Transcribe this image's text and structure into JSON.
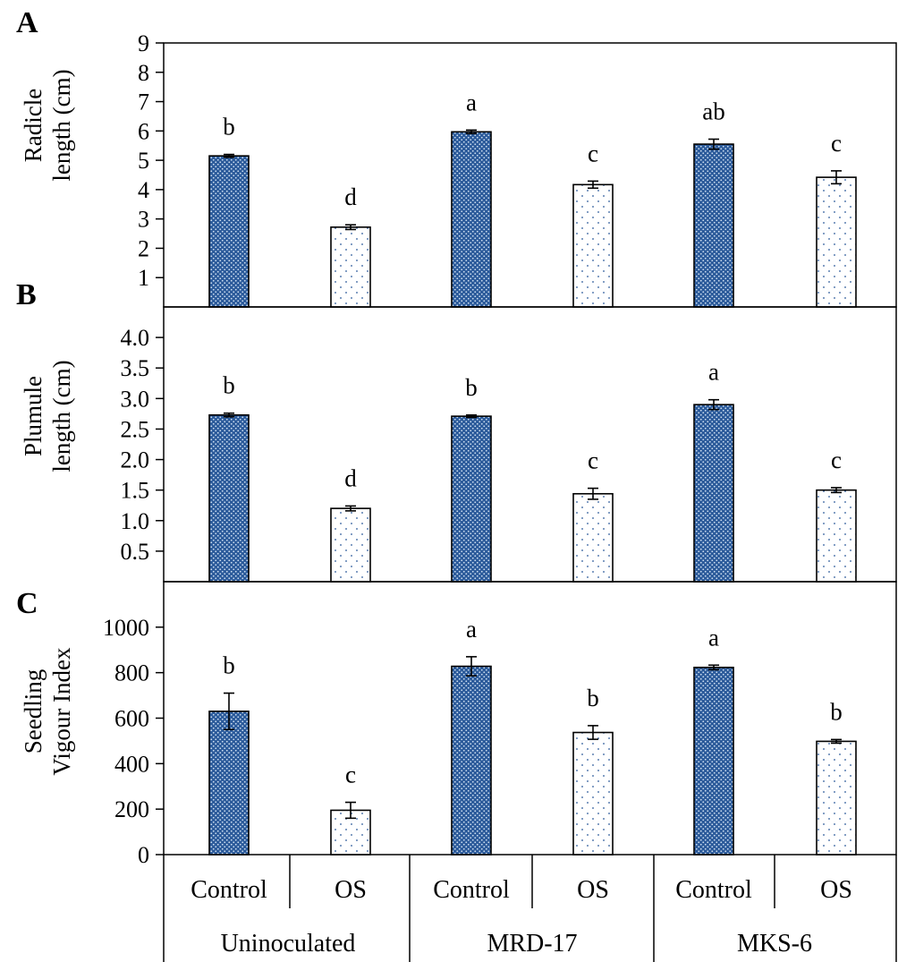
{
  "chart_data": [
    {
      "panel": "A",
      "type": "bar",
      "ylabel_lines": [
        "Radicle",
        "length (cm)"
      ],
      "ylim": [
        0,
        9
      ],
      "yticks": [
        "1",
        "2",
        "3",
        "4",
        "5",
        "6",
        "7",
        "8",
        "9"
      ],
      "bars": [
        {
          "value": 5.15,
          "err": 0.05,
          "letter": "b"
        },
        {
          "value": 2.72,
          "err": 0.08,
          "letter": "d"
        },
        {
          "value": 5.97,
          "err": 0.06,
          "letter": "a"
        },
        {
          "value": 4.17,
          "err": 0.12,
          "letter": "c"
        },
        {
          "value": 5.55,
          "err": 0.17,
          "letter": "ab"
        },
        {
          "value": 4.42,
          "err": 0.22,
          "letter": "c"
        }
      ]
    },
    {
      "panel": "B",
      "type": "bar",
      "ylabel_lines": [
        "Plumule",
        "length (cm)"
      ],
      "ylim": [
        0,
        4.5
      ],
      "yticks": [
        "0.5",
        "1.0",
        "1.5",
        "2.0",
        "2.5",
        "3.0",
        "3.5",
        "4.0"
      ],
      "bars": [
        {
          "value": 2.73,
          "err": 0.03,
          "letter": "b"
        },
        {
          "value": 1.2,
          "err": 0.04,
          "letter": "d"
        },
        {
          "value": 2.71,
          "err": 0.02,
          "letter": "b"
        },
        {
          "value": 1.44,
          "err": 0.09,
          "letter": "c"
        },
        {
          "value": 2.9,
          "err": 0.08,
          "letter": "a"
        },
        {
          "value": 1.5,
          "err": 0.04,
          "letter": "c"
        }
      ]
    },
    {
      "panel": "C",
      "type": "bar",
      "ylabel_lines": [
        "Seedling",
        "Vigour Index"
      ],
      "ylim": [
        0,
        1200
      ],
      "yticks": [
        "0",
        "200",
        "400",
        "600",
        "800",
        "1000"
      ],
      "bars": [
        {
          "value": 630,
          "err": 80,
          "letter": "b"
        },
        {
          "value": 195,
          "err": 35,
          "letter": "c"
        },
        {
          "value": 828,
          "err": 42,
          "letter": "a"
        },
        {
          "value": 537,
          "err": 30,
          "letter": "b"
        },
        {
          "value": 823,
          "err": 10,
          "letter": "a"
        },
        {
          "value": 498,
          "err": 8,
          "letter": "b"
        }
      ]
    }
  ],
  "categories": [
    "Control",
    "OS",
    "Control",
    "OS",
    "Control",
    "OS"
  ],
  "groups": [
    "Uninoculated",
    "MRD-17",
    "MKS-6"
  ],
  "colors": {
    "control_fill": "#2b5a9a",
    "control_dots": "#cfe0f2",
    "os_fill": "#ffffff",
    "os_dots": "#2b5a9a",
    "frame": "#000000"
  }
}
